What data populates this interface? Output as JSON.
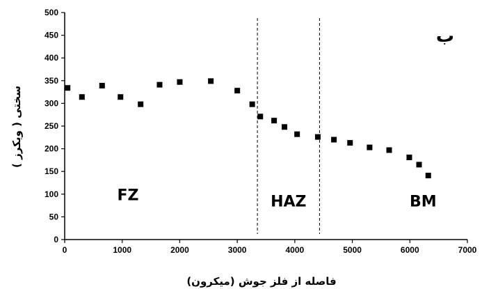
{
  "chart_data": {
    "type": "scatter",
    "title": "",
    "xlabel": "فاصله از فلز جوش (میکرون)",
    "ylabel": "سختی ( ویکرز )",
    "panel_label": "ب",
    "xlim": [
      0,
      7000
    ],
    "ylim": [
      0,
      500
    ],
    "xticks": [
      0,
      1000,
      2000,
      3000,
      4000,
      5000,
      6000,
      7000
    ],
    "yticks": [
      0,
      50,
      100,
      150,
      200,
      250,
      300,
      350,
      400,
      450,
      500
    ],
    "grid": false,
    "legend": "none",
    "marker_color": "#000000",
    "series": [
      {
        "points": [
          [
            50,
            334
          ],
          [
            300,
            314
          ],
          [
            650,
            339
          ],
          [
            970,
            314
          ],
          [
            1320,
            298
          ],
          [
            1650,
            341
          ],
          [
            2000,
            347
          ],
          [
            2540,
            349
          ],
          [
            3000,
            328
          ],
          [
            3260,
            298
          ],
          [
            3400,
            271
          ],
          [
            3640,
            262
          ],
          [
            3820,
            248
          ],
          [
            4040,
            232
          ],
          [
            4400,
            226
          ],
          [
            4680,
            220
          ],
          [
            4960,
            213
          ],
          [
            5300,
            203
          ],
          [
            5640,
            197
          ],
          [
            5990,
            181
          ],
          [
            6160,
            165
          ],
          [
            6320,
            141
          ]
        ]
      }
    ],
    "boundaries": [
      3350,
      4430
    ],
    "regions": [
      {
        "label": "FZ",
        "x": 1100,
        "y": 87
      },
      {
        "label": "HAZ",
        "x": 3890,
        "y": 73
      },
      {
        "label": "BM",
        "x": 6230,
        "y": 73
      }
    ]
  }
}
